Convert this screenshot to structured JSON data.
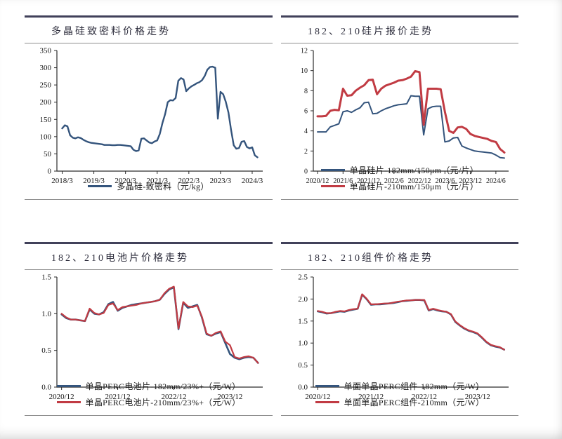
{
  "colors": {
    "blue": "#34547c",
    "red": "#c13b43",
    "axis": "#2b2b2b",
    "tick_text": "#141414"
  },
  "chart_data": [
    {
      "type": "line",
      "title": "多晶硅致密料价格走势",
      "ylim": [
        0,
        350
      ],
      "yticks": [
        {
          "v": 0,
          "label": "0"
        },
        {
          "v": 50,
          "label": "50"
        },
        {
          "v": 100,
          "label": "100"
        },
        {
          "v": 150,
          "label": "150"
        },
        {
          "v": 200,
          "label": "200"
        },
        {
          "v": 250,
          "label": "250"
        },
        {
          "v": 300,
          "label": "300"
        },
        {
          "v": 350,
          "label": "350"
        }
      ],
      "xdomain": [
        0,
        78
      ],
      "xticks": [
        {
          "pos": 2,
          "label": "2018/3"
        },
        {
          "pos": 14,
          "label": "2019/3"
        },
        {
          "pos": 26,
          "label": "2020/3"
        },
        {
          "pos": 38,
          "label": "2021/3"
        },
        {
          "pos": 50,
          "label": "2022/3"
        },
        {
          "pos": 62,
          "label": "2023/3"
        },
        {
          "pos": 74,
          "label": "2024/3"
        }
      ],
      "x_start": 2,
      "tick_font": 11,
      "grid": false,
      "legend_position": "bottom",
      "series": [
        {
          "name": "多晶硅-致密料（元/kg）",
          "color_key": "blue",
          "width": 2.4,
          "values": [
            124,
            133,
            130,
            104,
            97,
            95,
            98,
            96,
            91,
            87,
            84,
            82,
            81,
            80,
            79,
            78,
            76,
            76,
            76,
            75,
            75,
            76,
            76,
            75,
            74,
            73,
            72,
            62,
            58,
            60,
            94,
            95,
            89,
            83,
            81,
            86,
            89,
            108,
            140,
            165,
            200,
            206,
            205,
            212,
            262,
            270,
            266,
            232,
            240,
            246,
            250,
            255,
            258,
            264,
            276,
            294,
            302,
            303,
            300,
            152,
            230,
            223,
            201,
            170,
            120,
            75,
            65,
            67,
            85,
            87,
            70,
            66,
            69,
            46,
            40
          ]
        }
      ]
    },
    {
      "type": "line",
      "title": "182、210硅片报价走势",
      "ylim": [
        0,
        12
      ],
      "yticks": [
        {
          "v": 0,
          "label": "0"
        },
        {
          "v": 2,
          "label": "2"
        },
        {
          "v": 4,
          "label": "4"
        },
        {
          "v": 6,
          "label": "6"
        },
        {
          "v": 8,
          "label": "8"
        },
        {
          "v": 10,
          "label": "10"
        },
        {
          "v": 12,
          "label": "12"
        }
      ],
      "xdomain": [
        0,
        46
      ],
      "xticks": [
        {
          "pos": 1,
          "label": "2020/12"
        },
        {
          "pos": 7,
          "label": "2021/6"
        },
        {
          "pos": 13,
          "label": "2021/12"
        },
        {
          "pos": 19,
          "label": "2022/6"
        },
        {
          "pos": 25,
          "label": "2022/12"
        },
        {
          "pos": 31,
          "label": "2023/6"
        },
        {
          "pos": 37,
          "label": "2023/12"
        },
        {
          "pos": 43,
          "label": "2024/6"
        }
      ],
      "x_start": 1,
      "tick_font": 10,
      "grid": false,
      "legend_position": "bottom",
      "series": [
        {
          "name": "单晶硅片-182mm/150μm（元/片）",
          "color_key": "blue",
          "width": 2.0,
          "values": [
            3.9,
            3.9,
            3.9,
            4.4,
            4.55,
            4.7,
            5.9,
            6.0,
            5.85,
            6.1,
            6.3,
            6.8,
            6.85,
            5.7,
            5.75,
            6.0,
            6.2,
            6.35,
            6.5,
            6.6,
            6.65,
            6.7,
            7.5,
            7.45,
            7.45,
            3.6,
            6.2,
            6.4,
            6.45,
            6.45,
            2.9,
            3.0,
            3.3,
            3.35,
            2.5,
            2.3,
            2.15,
            2.0,
            1.95,
            1.9,
            1.85,
            1.8,
            1.6,
            1.35,
            1.3
          ]
        },
        {
          "name": "单晶硅片-210mm/150μm（元/片）",
          "color_key": "red",
          "width": 3.0,
          "values": [
            5.45,
            5.45,
            5.5,
            6.0,
            6.1,
            6.05,
            8.2,
            7.5,
            7.55,
            8.0,
            8.3,
            8.55,
            9.05,
            9.1,
            7.65,
            8.2,
            8.5,
            8.65,
            8.8,
            9.0,
            9.05,
            9.2,
            9.4,
            9.95,
            9.85,
            4.6,
            8.2,
            8.2,
            8.2,
            8.15,
            5.9,
            4.0,
            3.8,
            4.35,
            4.4,
            4.2,
            3.7,
            3.5,
            3.4,
            3.3,
            3.2,
            3.0,
            2.9,
            2.2,
            1.85
          ]
        }
      ]
    },
    {
      "type": "line",
      "title": "182、210电池片价格走势",
      "ylim": [
        0,
        1.5
      ],
      "yticks": [
        {
          "v": 0,
          "label": "0.0"
        },
        {
          "v": 0.5,
          "label": "0.5"
        },
        {
          "v": 1.0,
          "label": "1.0"
        },
        {
          "v": 1.5,
          "label": "1.5"
        }
      ],
      "xdomain": [
        0,
        44
      ],
      "xticks": [
        {
          "pos": 1,
          "label": "2020/12"
        },
        {
          "pos": 13,
          "label": "2021/12"
        },
        {
          "pos": 25,
          "label": "2022/12"
        },
        {
          "pos": 37,
          "label": "2023/12"
        }
      ],
      "x_start": 1,
      "tick_font": 11,
      "grid": false,
      "legend_position": "bottom",
      "series": [
        {
          "name": "单晶PERC电池片-182mm/23%+（元/W）",
          "color_key": "blue",
          "width": 2.6,
          "values": [
            0.99,
            0.94,
            0.92,
            0.92,
            0.91,
            0.9,
            1.06,
            1.0,
            0.99,
            1.02,
            1.13,
            1.16,
            1.04,
            1.08,
            1.1,
            1.12,
            1.13,
            1.14,
            1.15,
            1.16,
            1.17,
            1.19,
            1.27,
            1.33,
            1.36,
            0.79,
            1.15,
            1.08,
            1.1,
            1.12,
            0.95,
            0.72,
            0.7,
            0.73,
            0.75,
            0.6,
            0.45,
            0.4,
            0.38,
            0.4,
            0.41,
            0.4,
            0.33
          ]
        },
        {
          "name": "单晶PERC电池片-210mm/23%+（元/W）",
          "color_key": "red",
          "width": 2.2,
          "values": [
            1.0,
            0.95,
            0.92,
            0.92,
            0.91,
            0.9,
            1.07,
            1.01,
            0.99,
            1.01,
            1.12,
            1.14,
            1.05,
            1.09,
            1.1,
            1.11,
            1.12,
            1.14,
            1.15,
            1.16,
            1.17,
            1.19,
            1.28,
            1.34,
            1.37,
            0.8,
            1.16,
            1.1,
            1.09,
            1.11,
            0.96,
            0.73,
            0.7,
            0.74,
            0.76,
            0.62,
            0.57,
            0.41,
            0.39,
            0.41,
            0.42,
            0.4,
            0.33
          ]
        }
      ]
    },
    {
      "type": "line",
      "title": "182、210组件价格走势",
      "ylim": [
        0,
        2.5
      ],
      "yticks": [
        {
          "v": 0,
          "label": "0.0"
        },
        {
          "v": 0.5,
          "label": "0.5"
        },
        {
          "v": 1.0,
          "label": "1.0"
        },
        {
          "v": 1.5,
          "label": "1.5"
        },
        {
          "v": 2.0,
          "label": "2.0"
        },
        {
          "v": 2.5,
          "label": "2.5"
        }
      ],
      "xdomain": [
        0,
        44
      ],
      "xticks": [
        {
          "pos": 1,
          "label": "2020/12"
        },
        {
          "pos": 13,
          "label": "2021/12"
        },
        {
          "pos": 25,
          "label": "2022/12"
        },
        {
          "pos": 37,
          "label": "2023/12"
        }
      ],
      "x_start": 1,
      "tick_font": 11,
      "grid": false,
      "legend_position": "bottom",
      "series": [
        {
          "name": "单面单晶PERC组件-182mm（元/W）",
          "color_key": "blue",
          "width": 2.6,
          "values": [
            1.72,
            1.7,
            1.67,
            1.68,
            1.7,
            1.72,
            1.71,
            1.74,
            1.76,
            1.78,
            2.1,
            2.0,
            1.87,
            1.88,
            1.88,
            1.89,
            1.9,
            1.91,
            1.93,
            1.95,
            1.96,
            1.97,
            1.98,
            1.98,
            1.97,
            1.74,
            1.77,
            1.74,
            1.72,
            1.71,
            1.65,
            1.48,
            1.4,
            1.33,
            1.28,
            1.25,
            1.21,
            1.12,
            1.02,
            0.95,
            0.92,
            0.9,
            0.85
          ]
        },
        {
          "name": "单面单晶PERC组件-210mm（元/W）",
          "color_key": "red",
          "width": 2.2,
          "values": [
            1.73,
            1.71,
            1.68,
            1.68,
            1.71,
            1.73,
            1.72,
            1.75,
            1.77,
            1.78,
            2.11,
            2.01,
            1.88,
            1.88,
            1.89,
            1.9,
            1.9,
            1.92,
            1.94,
            1.95,
            1.97,
            1.97,
            1.98,
            1.98,
            1.98,
            1.75,
            1.78,
            1.75,
            1.73,
            1.71,
            1.66,
            1.49,
            1.41,
            1.34,
            1.29,
            1.26,
            1.22,
            1.13,
            1.03,
            0.96,
            0.93,
            0.91,
            0.85
          ]
        }
      ]
    }
  ]
}
